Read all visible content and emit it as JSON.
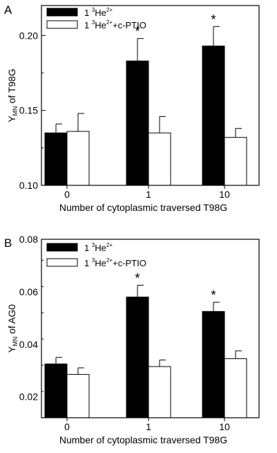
{
  "chart_data": [
    {
      "type": "bar",
      "panel_label": "A",
      "xlabel": "Number of cytoplasmic traversed T98G",
      "ylabel": {
        "main": "Y",
        "sub": "MN",
        "rest": " of T98G"
      },
      "ylim": [
        0.1,
        0.22
      ],
      "yticks": [
        "0.10",
        "0.15",
        "0.20"
      ],
      "minor_tick_step": 0.025,
      "tick_values": [
        0.1,
        0.15,
        0.2
      ],
      "categories": [
        "0",
        "1",
        "10"
      ],
      "series": [
        {
          "name": {
            "prefix": "1 ",
            "sup1": "3",
            "base": "He",
            "sup2": "2+",
            "suffix": ""
          },
          "fill": "#000000",
          "values": [
            0.135,
            0.183,
            0.193
          ],
          "errors": [
            0.006,
            0.015,
            0.013
          ]
        },
        {
          "name": {
            "prefix": "1 ",
            "sup1": "3",
            "base": "He",
            "sup2": "2+",
            "suffix": "+c-PTIO"
          },
          "fill": "#ffffff",
          "values": [
            0.136,
            0.135,
            0.132
          ],
          "errors": [
            0.012,
            0.011,
            0.006
          ]
        }
      ],
      "significance": [
        {
          "category": "1",
          "series": 0,
          "label": "*"
        },
        {
          "category": "10",
          "series": 0,
          "label": "*"
        }
      ],
      "grid": false,
      "legend_position": "top-left"
    },
    {
      "type": "bar",
      "panel_label": "B",
      "xlabel": "Number of cytoplasmic traversed T98G",
      "ylabel": {
        "main": "Y",
        "sub": "MN",
        "rest": " of AG0"
      },
      "ylim": [
        0.012,
        0.08
      ],
      "yticks": [
        "0.02",
        "0.04",
        "0.06",
        "0.08"
      ],
      "minor_tick_step": 0.01,
      "tick_values": [
        0.02,
        0.04,
        0.06,
        0.08
      ],
      "categories": [
        "0",
        "1",
        "10"
      ],
      "series": [
        {
          "name": {
            "prefix": "1 ",
            "sup1": "3",
            "base": "He",
            "sup2": "2+",
            "suffix": ""
          },
          "fill": "#000000",
          "values": [
            0.0325,
            0.058,
            0.0525
          ],
          "errors": [
            0.0025,
            0.0045,
            0.0035
          ]
        },
        {
          "name": {
            "prefix": "1 ",
            "sup1": "3",
            "base": "He",
            "sup2": "2+",
            "suffix": "+c-PTIO"
          },
          "fill": "#ffffff",
          "values": [
            0.0285,
            0.0315,
            0.0345
          ],
          "errors": [
            0.0025,
            0.0025,
            0.003
          ]
        }
      ],
      "significance": [
        {
          "category": "1",
          "series": 0,
          "label": "*"
        },
        {
          "category": "10",
          "series": 0,
          "label": "*"
        }
      ],
      "grid": false,
      "legend_position": "top-left"
    }
  ]
}
